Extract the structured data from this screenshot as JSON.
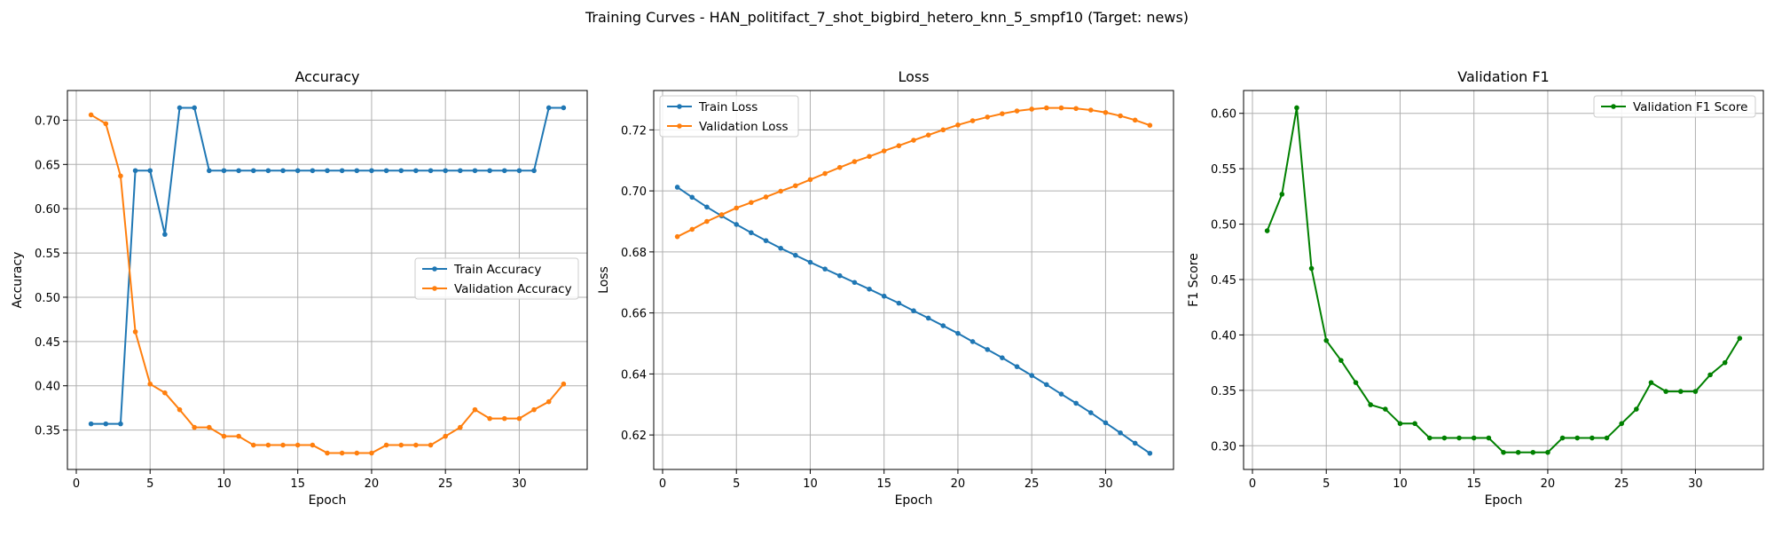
{
  "figure": {
    "title": "Training Curves - HAN_politifact_7_shot_bigbird_hetero_knn_5_smpf10 (Target: news)"
  },
  "chart_data": [
    {
      "type": "line",
      "title": "Accuracy",
      "xlabel": "Epoch",
      "ylabel": "Accuracy",
      "xlim": [
        -0.6,
        34.6
      ],
      "ylim": [
        0.3055,
        0.7335
      ],
      "xticks": [
        0,
        5,
        10,
        15,
        20,
        25,
        30
      ],
      "yticks": [
        0.35,
        0.4,
        0.45,
        0.5,
        0.55,
        0.6,
        0.65,
        0.7
      ],
      "ytick_labels": [
        "0.35",
        "0.40",
        "0.45",
        "0.50",
        "0.55",
        "0.60",
        "0.65",
        "0.70"
      ],
      "grid": true,
      "legend_position": "center-right",
      "x": [
        1,
        2,
        3,
        4,
        5,
        6,
        7,
        8,
        9,
        10,
        11,
        12,
        13,
        14,
        15,
        16,
        17,
        18,
        19,
        20,
        21,
        22,
        23,
        24,
        25,
        26,
        27,
        28,
        29,
        30,
        31,
        32,
        33
      ],
      "series": [
        {
          "name": "Train Accuracy",
          "color": "#1f77b4",
          "values": [
            0.357,
            0.357,
            0.357,
            0.643,
            0.643,
            0.571,
            0.714,
            0.714,
            0.643,
            0.643,
            0.643,
            0.643,
            0.643,
            0.643,
            0.643,
            0.643,
            0.643,
            0.643,
            0.643,
            0.643,
            0.643,
            0.643,
            0.643,
            0.643,
            0.643,
            0.643,
            0.643,
            0.643,
            0.643,
            0.643,
            0.643,
            0.714,
            0.714
          ]
        },
        {
          "name": "Validation Accuracy",
          "color": "#ff7f0e",
          "values": [
            0.706,
            0.696,
            0.637,
            0.461,
            0.402,
            0.392,
            0.373,
            0.353,
            0.353,
            0.343,
            0.343,
            0.333,
            0.333,
            0.333,
            0.333,
            0.333,
            0.324,
            0.324,
            0.324,
            0.324,
            0.333,
            0.333,
            0.333,
            0.333,
            0.343,
            0.353,
            0.373,
            0.363,
            0.363,
            0.363,
            0.373,
            0.382,
            0.402
          ]
        }
      ]
    },
    {
      "type": "line",
      "title": "Loss",
      "xlabel": "Epoch",
      "ylabel": "Loss",
      "xlim": [
        -0.6,
        34.6
      ],
      "ylim": [
        0.6087,
        0.7329
      ],
      "xticks": [
        0,
        5,
        10,
        15,
        20,
        25,
        30
      ],
      "yticks": [
        0.62,
        0.64,
        0.66,
        0.68,
        0.7,
        0.72
      ],
      "ytick_labels": [
        "0.62",
        "0.64",
        "0.66",
        "0.68",
        "0.70",
        "0.72"
      ],
      "grid": true,
      "legend_position": "top-left",
      "x": [
        1,
        2,
        3,
        4,
        5,
        6,
        7,
        8,
        9,
        10,
        11,
        12,
        13,
        14,
        15,
        16,
        17,
        18,
        19,
        20,
        21,
        22,
        23,
        24,
        25,
        26,
        27,
        28,
        29,
        30,
        31,
        32,
        33
      ],
      "series": [
        {
          "name": "Train Loss",
          "color": "#1f77b4",
          "values": [
            0.7012,
            0.6979,
            0.6947,
            0.6918,
            0.689,
            0.6863,
            0.6837,
            0.6812,
            0.6789,
            0.6766,
            0.6744,
            0.6722,
            0.67,
            0.6678,
            0.6655,
            0.6632,
            0.6607,
            0.6583,
            0.6558,
            0.6533,
            0.6506,
            0.648,
            0.6453,
            0.6424,
            0.6395,
            0.6365,
            0.6334,
            0.6304,
            0.6273,
            0.624,
            0.6207,
            0.6173,
            0.614
          ]
        },
        {
          "name": "Validation Loss",
          "color": "#ff7f0e",
          "values": [
            0.685,
            0.6874,
            0.69,
            0.6922,
            0.6944,
            0.6962,
            0.698,
            0.6999,
            0.7017,
            0.7037,
            0.7057,
            0.7077,
            0.7096,
            0.7113,
            0.7131,
            0.7148,
            0.7166,
            0.7183,
            0.72,
            0.7216,
            0.723,
            0.7242,
            0.7253,
            0.7262,
            0.7268,
            0.7272,
            0.7272,
            0.727,
            0.7265,
            0.7257,
            0.7246,
            0.7232,
            0.7215
          ]
        }
      ]
    },
    {
      "type": "line",
      "title": "Validation F1",
      "xlabel": "Epoch",
      "ylabel": "F1 Score",
      "xlim": [
        -0.6,
        34.6
      ],
      "ylim": [
        0.2786,
        0.6206
      ],
      "xticks": [
        0,
        5,
        10,
        15,
        20,
        25,
        30
      ],
      "yticks": [
        0.3,
        0.35,
        0.4,
        0.45,
        0.5,
        0.55,
        0.6
      ],
      "ytick_labels": [
        "0.30",
        "0.35",
        "0.40",
        "0.45",
        "0.50",
        "0.55",
        "0.60"
      ],
      "grid": true,
      "legend_position": "top-right",
      "x": [
        1,
        2,
        3,
        4,
        5,
        6,
        7,
        8,
        9,
        10,
        11,
        12,
        13,
        14,
        15,
        16,
        17,
        18,
        19,
        20,
        21,
        22,
        23,
        24,
        25,
        26,
        27,
        28,
        29,
        30,
        31,
        32,
        33
      ],
      "series": [
        {
          "name": "Validation F1 Score",
          "color": "#008000",
          "values": [
            0.494,
            0.527,
            0.605,
            0.46,
            0.395,
            0.377,
            0.357,
            0.337,
            0.333,
            0.32,
            0.32,
            0.307,
            0.307,
            0.307,
            0.307,
            0.307,
            0.294,
            0.294,
            0.294,
            0.294,
            0.307,
            0.307,
            0.307,
            0.307,
            0.32,
            0.333,
            0.357,
            0.349,
            0.349,
            0.349,
            0.364,
            0.375,
            0.397
          ]
        }
      ]
    }
  ]
}
